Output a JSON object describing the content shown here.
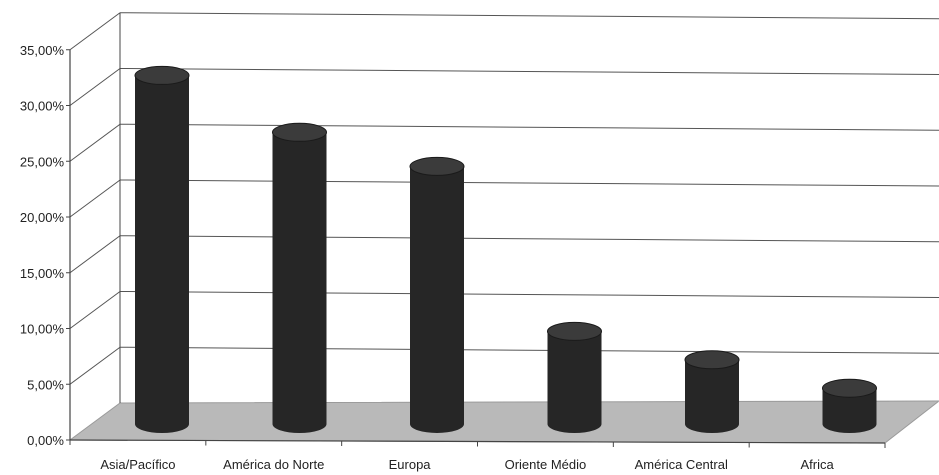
{
  "chart_data": {
    "type": "bar",
    "style": "3d-cylinder",
    "categories": [
      "Asia/Pacífico",
      "América do Norte",
      "Europa",
      "Oriente Médio",
      "América Central",
      "Africa"
    ],
    "values": [
      31.0,
      26.0,
      23.0,
      8.5,
      6.0,
      3.5
    ],
    "y_tick_labels": [
      "0,00%",
      "5,00%",
      "10,00%",
      "15,00%",
      "20,00%",
      "25,00%",
      "30,00%",
      "35,00%"
    ],
    "ylim": [
      0,
      35
    ],
    "grid": true,
    "legend": "none",
    "colors": {
      "bar": "#262626",
      "bar_top": "#3b3b3b",
      "floor": "#b9b9b9",
      "grid": "#555555",
      "axis": "#444444"
    }
  }
}
